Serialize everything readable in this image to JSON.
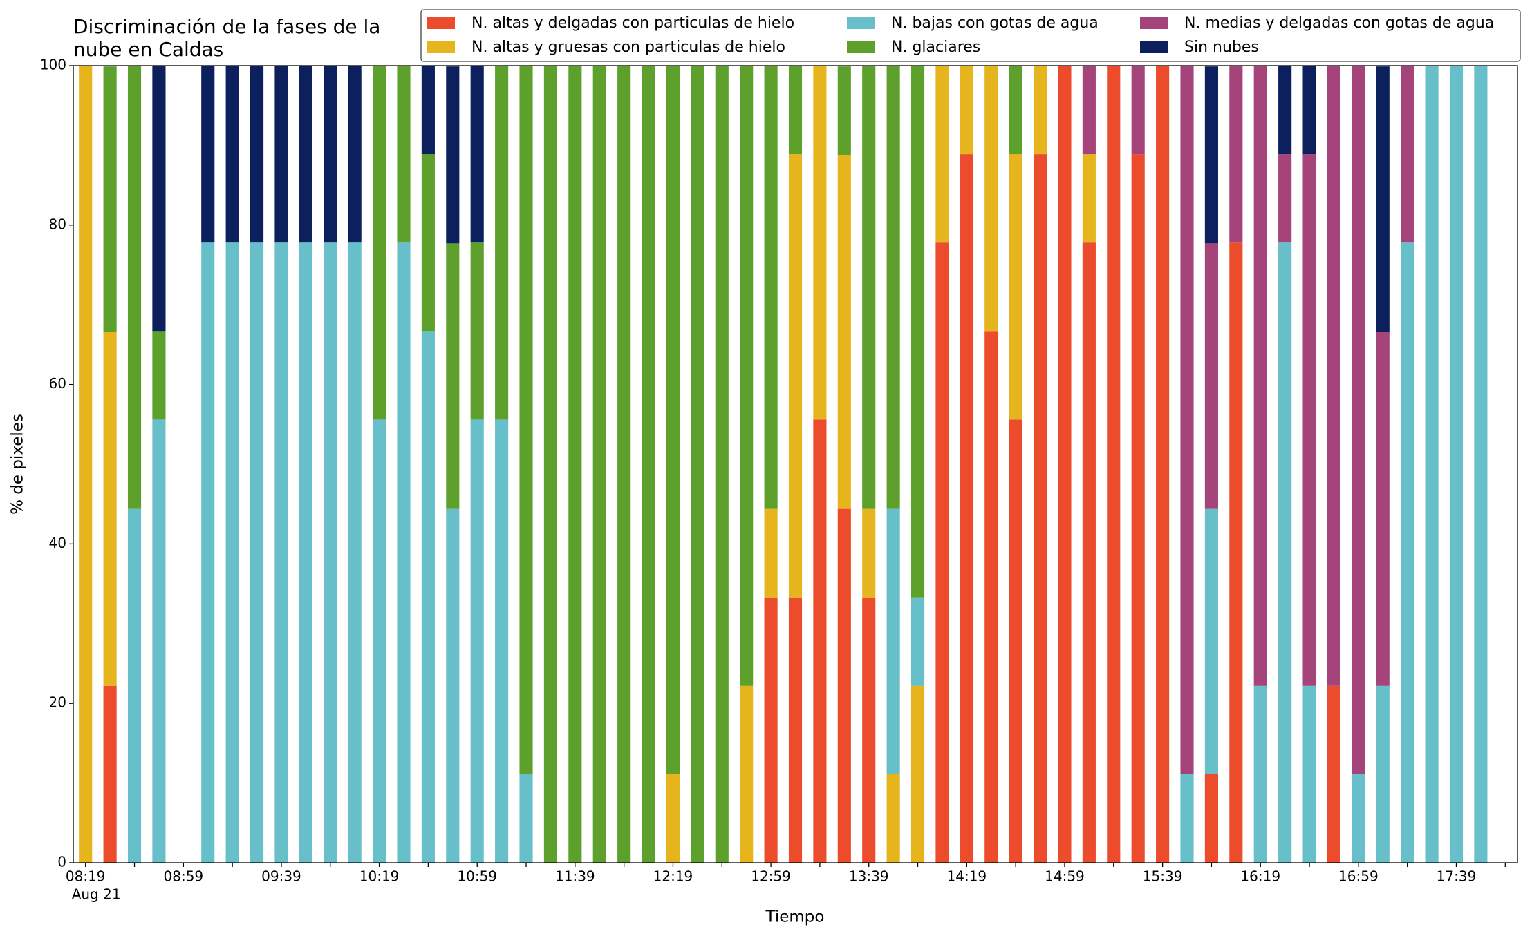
{
  "chart_data": {
    "type": "stacked_bar",
    "title": [
      "Discriminación de la fases de la",
      "nube en Caldas"
    ],
    "x_label": "Tiempo",
    "y_label": "% de pixeles",
    "x_date_label": "Aug 21",
    "categories": [
      "08:19",
      null,
      null,
      null,
      "08:59",
      null,
      null,
      null,
      "09:39",
      null,
      null,
      null,
      "10:19",
      null,
      null,
      null,
      "10:59",
      null,
      null,
      null,
      "11:39",
      null,
      null,
      null,
      "12:19",
      null,
      null,
      null,
      "12:59",
      null,
      null,
      null,
      "13:39",
      null,
      null,
      null,
      "14:19",
      null,
      null,
      null,
      "14:59",
      null,
      null,
      null,
      "15:39",
      null,
      null,
      null,
      "16:19",
      null,
      null,
      null,
      "16:59",
      null,
      null,
      null,
      "17:39",
      null,
      null
    ],
    "ylim": [
      0,
      100
    ],
    "yticks": [
      0,
      20,
      40,
      60,
      80,
      100
    ],
    "series": [
      {
        "name": "N. altas y delgadas con particulas de hielo",
        "color": "#ec4b2c",
        "values": [
          0,
          22.2,
          0,
          0,
          0,
          0,
          0,
          0,
          0,
          0,
          0,
          0,
          0,
          0,
          0,
          0,
          0,
          0,
          0,
          0,
          0,
          0,
          0,
          0,
          0,
          0,
          0,
          0,
          33.3,
          33.3,
          55.6,
          44.4,
          33.3,
          0,
          0,
          77.8,
          88.9,
          66.7,
          55.6,
          88.9,
          100,
          77.8,
          100,
          88.9,
          100,
          0,
          11.1,
          77.8,
          0,
          0,
          0,
          22.2,
          0,
          0,
          0,
          0,
          0,
          0,
          0
        ]
      },
      {
        "name": "N. altas y gruesas con particulas de hielo",
        "color": "#e6b41c",
        "values": [
          100,
          44.4,
          0,
          0,
          0,
          0,
          0,
          0,
          0,
          0,
          0,
          0,
          0,
          0,
          0,
          0,
          0,
          0,
          0,
          0,
          0,
          0,
          0,
          0,
          11.1,
          0,
          0,
          22.2,
          11.1,
          55.6,
          44.4,
          44.4,
          11.1,
          11.1,
          22.2,
          22.2,
          11.1,
          33.3,
          33.3,
          11.1,
          0,
          11.1,
          0,
          0,
          0,
          0,
          0,
          0,
          0,
          0,
          0,
          0,
          0,
          0,
          0,
          0,
          0,
          0,
          0
        ]
      },
      {
        "name": "N. bajas con gotas de agua",
        "color": "#66bfc9",
        "values": [
          0,
          0,
          44.4,
          55.6,
          0,
          77.8,
          77.8,
          77.8,
          77.8,
          77.8,
          77.8,
          77.8,
          55.6,
          77.8,
          66.7,
          44.4,
          55.6,
          55.6,
          11.1,
          0,
          0,
          0,
          0,
          0,
          0,
          0,
          0,
          0,
          0,
          0,
          0,
          0,
          0,
          33.3,
          11.1,
          0,
          0,
          0,
          0,
          0,
          0,
          0,
          0,
          0,
          0,
          11.1,
          33.3,
          0,
          22.2,
          77.8,
          22.2,
          0,
          11.1,
          22.2,
          77.8,
          100,
          100,
          100,
          0
        ]
      },
      {
        "name": "N. glaciares",
        "color": "#5da02c",
        "values": [
          0,
          33.3,
          55.6,
          11.1,
          0,
          0,
          0,
          0,
          0,
          0,
          0,
          0,
          44.4,
          22.2,
          22.2,
          33.3,
          22.2,
          44.4,
          88.9,
          100,
          100,
          100,
          100,
          100,
          88.9,
          100,
          100,
          77.8,
          55.6,
          11.1,
          0,
          11.1,
          55.6,
          55.6,
          66.7,
          0,
          0,
          0,
          11.1,
          0,
          0,
          0,
          0,
          0,
          0,
          0,
          0,
          0,
          0,
          0,
          0,
          0,
          0,
          0,
          0,
          0,
          0,
          0,
          0
        ]
      },
      {
        "name": "N. medias y delgadas con gotas de agua",
        "color": "#a5447a",
        "values": [
          0,
          0,
          0,
          0,
          0,
          0,
          0,
          0,
          0,
          0,
          0,
          0,
          0,
          0,
          0,
          0,
          0,
          0,
          0,
          0,
          0,
          0,
          0,
          0,
          0,
          0,
          0,
          0,
          0,
          0,
          0,
          0,
          0,
          0,
          0,
          0,
          0,
          0,
          0,
          0,
          0,
          11.1,
          0,
          11.1,
          0,
          88.9,
          33.3,
          22.2,
          77.8,
          11.1,
          66.7,
          77.8,
          88.9,
          44.4,
          22.2,
          0,
          0,
          0,
          0
        ]
      },
      {
        "name": "Sin nubes",
        "color": "#0b205c",
        "values": [
          0,
          0,
          0,
          33.3,
          0,
          22.2,
          22.2,
          22.2,
          22.2,
          22.2,
          22.2,
          22.2,
          0,
          0,
          11.1,
          22.2,
          22.2,
          0,
          0,
          0,
          0,
          0,
          0,
          0,
          0,
          0,
          0,
          0,
          0,
          0,
          0,
          0,
          0,
          0,
          0,
          0,
          0,
          0,
          0,
          0,
          0,
          0,
          0,
          0,
          0,
          0,
          22.2,
          0,
          0,
          11.1,
          11.1,
          0,
          0,
          33.3,
          0,
          0,
          0,
          0,
          0
        ]
      }
    ]
  }
}
